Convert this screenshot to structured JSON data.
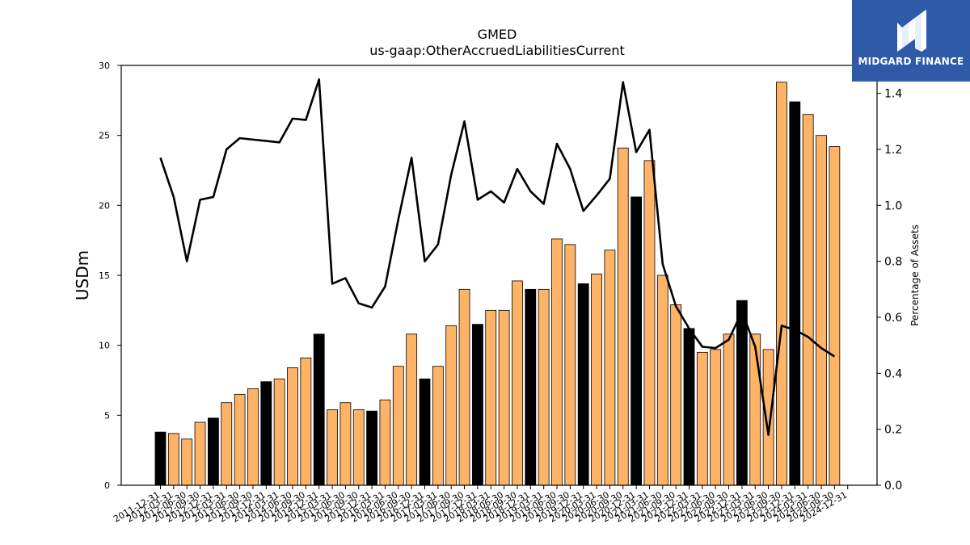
{
  "chart_data": {
    "type": "bar",
    "title": "GMED",
    "subtitle": "us-gaap:OtherAccruedLiabilitiesCurrent",
    "ylabel": "USDm",
    "y2label": "Percentage of Assets",
    "ylim": [
      0,
      30
    ],
    "y2lim": [
      0,
      1.5
    ],
    "yticks": [
      0,
      5,
      10,
      15,
      20,
      25,
      30
    ],
    "y2ticks": [
      0.0,
      0.2,
      0.4,
      0.6,
      0.8,
      1.0,
      1.2,
      1.4
    ],
    "y2tick_labels": [
      "0.0",
      "0.2",
      "0.4",
      "0.6",
      "0.8",
      "1.0",
      "1.2",
      "1.4"
    ],
    "categories": [
      "2011-12-31",
      "2012-03-31",
      "2012-06-30",
      "2012-09-30",
      "2012-12-31",
      "2013-03-31",
      "2013-06-30",
      "2013-09-30",
      "2013-12-31",
      "2014-03-31",
      "2014-06-30",
      "2014-09-30",
      "2014-12-31",
      "2015-03-31",
      "2015-06-30",
      "2015-09-30",
      "2015-12-31",
      "2016-03-31",
      "2016-06-30",
      "2016-09-30",
      "2016-12-31",
      "2017-03-31",
      "2017-06-30",
      "2017-09-30",
      "2017-12-31",
      "2018-03-31",
      "2018-06-30",
      "2018-09-30",
      "2018-12-31",
      "2019-03-31",
      "2019-06-30",
      "2019-09-30",
      "2019-12-31",
      "2020-03-31",
      "2020-06-30",
      "2020-09-30",
      "2020-12-31",
      "2021-03-31",
      "2021-06-30",
      "2021-09-30",
      "2021-12-31",
      "2022-03-31",
      "2022-06-30",
      "2022-09-30",
      "2022-12-31",
      "2023-03-31",
      "2023-06-30",
      "2023-09-30",
      "2023-12-31",
      "2024-03-31",
      "2024-06-30",
      "2024-09-30",
      "2024-12-31"
    ],
    "series": [
      {
        "type": "bar",
        "values": [
          3.8,
          3.7,
          3.3,
          4.5,
          4.8,
          5.9,
          6.5,
          6.9,
          7.4,
          7.6,
          8.4,
          9.1,
          10.8,
          5.4,
          5.9,
          5.4,
          5.3,
          6.1,
          8.5,
          10.8,
          7.6,
          8.5,
          11.4,
          14.0,
          11.5,
          12.5,
          12.5,
          14.6,
          14.0,
          14.0,
          17.6,
          17.2,
          14.4,
          15.1,
          16.8,
          24.1,
          20.6,
          23.2,
          15.0,
          12.9,
          11.2,
          9.5,
          9.7,
          10.8,
          13.2,
          10.8,
          9.7,
          28.8,
          27.4,
          26.5,
          25.0,
          24.2,
          null
        ]
      },
      {
        "type": "line",
        "axis": "right",
        "values": [
          1.17,
          1.03,
          0.8,
          1.02,
          1.03,
          1.2,
          1.24,
          1.235,
          1.23,
          1.225,
          1.31,
          1.305,
          1.45,
          0.72,
          0.74,
          0.65,
          0.635,
          0.71,
          0.95,
          1.17,
          0.8,
          0.86,
          1.11,
          1.3,
          1.02,
          1.05,
          1.01,
          1.13,
          1.05,
          1.005,
          1.22,
          1.13,
          0.98,
          1.035,
          1.095,
          1.44,
          1.19,
          1.27,
          0.79,
          0.64,
          0.56,
          0.495,
          0.49,
          0.52,
          0.62,
          0.495,
          0.18,
          0.57,
          0.555,
          0.53,
          0.49,
          0.46,
          null
        ]
      }
    ],
    "bar_colors": {
      "year_end": "#000000",
      "quarter": "#ffb366",
      "edge": "#000000"
    },
    "line_color": "#000000",
    "grid": false,
    "legend": "none"
  },
  "logo": {
    "text": "MIDGARD FINANCE",
    "background": "#2f5aa8"
  }
}
